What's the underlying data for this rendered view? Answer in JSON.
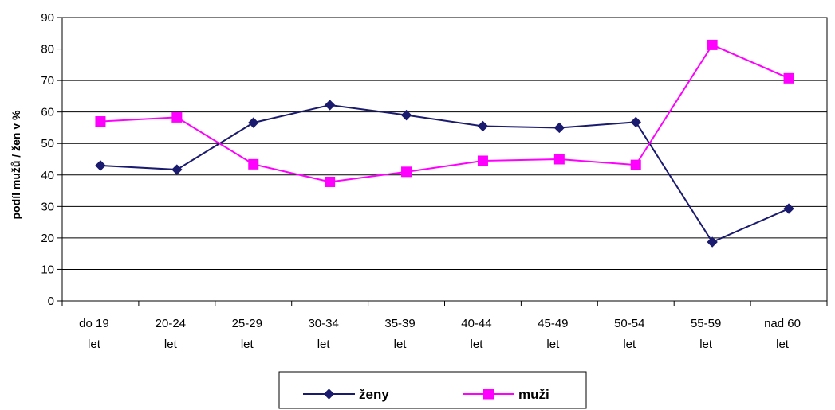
{
  "chart_data": {
    "type": "line",
    "ylabel": "podíl mužů / žen v %",
    "ylim": [
      0,
      90
    ],
    "yticks": [
      "0",
      "10",
      "20",
      "30",
      "40",
      "50",
      "60",
      "70",
      "80",
      "90"
    ],
    "grid": true,
    "legend_position": "bottom",
    "categories": [
      [
        "do 19",
        "let"
      ],
      [
        "20-24",
        "let"
      ],
      [
        "25-29",
        "let"
      ],
      [
        "30-34",
        "let"
      ],
      [
        "35-39",
        "let"
      ],
      [
        "40-44",
        "let"
      ],
      [
        "45-49",
        "let"
      ],
      [
        "50-54",
        "let"
      ],
      [
        "55-59",
        "let"
      ],
      [
        "nad 60",
        "let"
      ]
    ],
    "series": [
      {
        "name": "ženy",
        "color": "#1a1a6e",
        "marker": "diamond",
        "values": [
          43,
          41.7,
          56.6,
          62.2,
          59,
          55.5,
          55,
          56.8,
          18.7,
          29.3
        ]
      },
      {
        "name": "muži",
        "color": "#ff00ff",
        "marker": "square",
        "values": [
          57,
          58.3,
          43.4,
          37.8,
          41,
          44.5,
          45,
          43.2,
          81.3,
          70.7
        ]
      }
    ]
  }
}
